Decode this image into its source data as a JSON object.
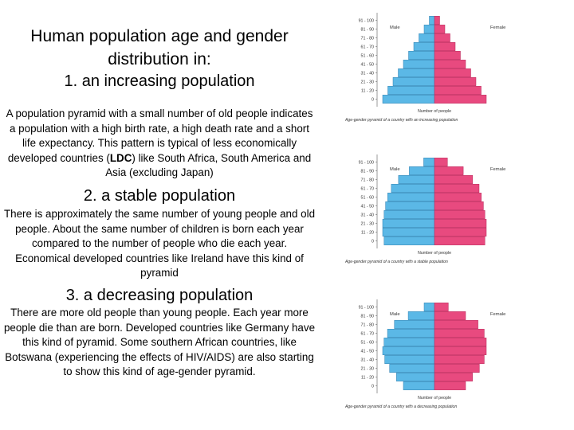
{
  "title_line1": "Human population age and gender",
  "title_line2": "distribution in:",
  "section1": {
    "heading": "1. an increasing population",
    "text_before": "A population pyramid with a small number of old people indicates a population with a high birth rate, a high death rate and a short life expectancy. This pattern is typical of less economically developed countries (",
    "text_bold": "LDC",
    "text_after": ") like South Africa, South America and Asia (excluding Japan)"
  },
  "section2": {
    "heading": "2. a stable population",
    "text": "There is approximately the same number of young people and old people. About the same number of children is born each year compared to the number of people who die each year. Economical developed countries like Ireland have this kind of pyramid"
  },
  "section3": {
    "heading": "3. a decreasing population",
    "text": "There are more old people than young people. Each year more people die than are born. Developed countries like Germany have this kind of pyramid. Some southern African countries, like Botswana (experiencing the effects of HIV/AIDS) are also starting to show this kind of age-gender pyramid."
  },
  "colors": {
    "male": "#5bb8e6",
    "female": "#e84a7f",
    "male_edge": "#2f7fb0",
    "female_edge": "#b8285a"
  },
  "pyramids": [
    {
      "male_label": "Male",
      "female_label": "Female",
      "x_label": "Number of people",
      "caption": "Age-gender pyramid of a country with an increasing population",
      "age_groups": [
        "0",
        "11 - 20",
        "21 - 30",
        "31 - 40",
        "41 - 50",
        "51 - 60",
        "61 - 70",
        "71 - 80",
        "81 - 90",
        "91 - 100"
      ],
      "male_values": [
        10,
        9,
        8,
        7,
        6,
        5,
        4,
        3,
        2,
        1
      ],
      "female_values": [
        10,
        9,
        8,
        7,
        6,
        5,
        4,
        3,
        2,
        1
      ]
    },
    {
      "male_label": "Male",
      "female_label": "Female",
      "x_label": "Number of people",
      "caption": "Age-gender pyramid of a country with a stable population",
      "age_groups": [
        "0",
        "11 - 20",
        "21 - 30",
        "31 - 40",
        "41 - 50",
        "51 - 60",
        "61 - 70",
        "71 - 80",
        "81 - 90",
        "91 - 100"
      ],
      "male_values": [
        7,
        7.2,
        7.2,
        7,
        6.8,
        6.5,
        6,
        5,
        3.5,
        1.5
      ],
      "female_values": [
        7,
        7.2,
        7.2,
        7,
        6.8,
        6.5,
        6.2,
        5.3,
        4,
        1.8
      ]
    },
    {
      "male_label": "Male",
      "female_label": "Female",
      "x_label": "Number of people",
      "caption": "Age-gender pyramid of a country with a decreasing population",
      "age_groups": [
        "0",
        "11 - 20",
        "21 - 30",
        "31 - 40",
        "41 - 50",
        "51 - 60",
        "61 - 70",
        "71 - 80",
        "81 - 90",
        "91 - 100"
      ],
      "male_values": [
        4.5,
        5.5,
        6.5,
        7.2,
        7.5,
        7.3,
        6.8,
        5.8,
        3.8,
        1.5
      ],
      "female_values": [
        4.5,
        5.5,
        6.5,
        7.2,
        7.5,
        7.5,
        7.2,
        6.3,
        4.5,
        2
      ]
    }
  ]
}
